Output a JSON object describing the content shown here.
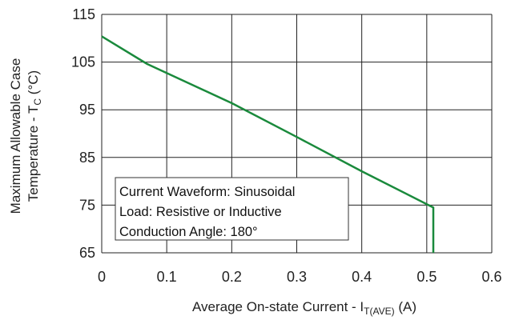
{
  "chart_data": {
    "type": "line",
    "title": "",
    "xlabel": {
      "prefix": "Average On-state Current - I",
      "subscript": "T(AVE)",
      "suffix": " (A)"
    },
    "ylabel": {
      "line1": "Maximum Allowable Case",
      "line2_prefix": "Temperature - T",
      "line2_subscript": "C",
      "line2_suffix": " (°C)"
    },
    "xlim": [
      0,
      0.6
    ],
    "ylim": [
      65,
      115
    ],
    "x_ticks": [
      "0",
      "0.1",
      "0.2",
      "0.3",
      "0.4",
      "0.5",
      "0.6"
    ],
    "x_tick_values": [
      0,
      0.1,
      0.2,
      0.3,
      0.4,
      0.5,
      0.6
    ],
    "y_ticks": [
      "65",
      "75",
      "85",
      "95",
      "105",
      "115"
    ],
    "y_tick_values": [
      65,
      75,
      85,
      95,
      105,
      115
    ],
    "grid": true,
    "series": [
      {
        "color": "#1a8a3c",
        "points": [
          [
            0.0,
            110.4
          ],
          [
            0.07,
            104.6
          ],
          [
            0.2,
            96.4
          ],
          [
            0.3,
            89.3
          ],
          [
            0.4,
            82.1
          ],
          [
            0.5,
            75.2
          ],
          [
            0.51,
            74.5
          ],
          [
            0.51,
            65.0
          ]
        ]
      }
    ],
    "annotations": [
      "Current Waveform: Sinusoidal",
      "Load: Resistive or Inductive",
      "Conduction Angle: 180°"
    ],
    "annotation_placement": "bottom-left"
  }
}
